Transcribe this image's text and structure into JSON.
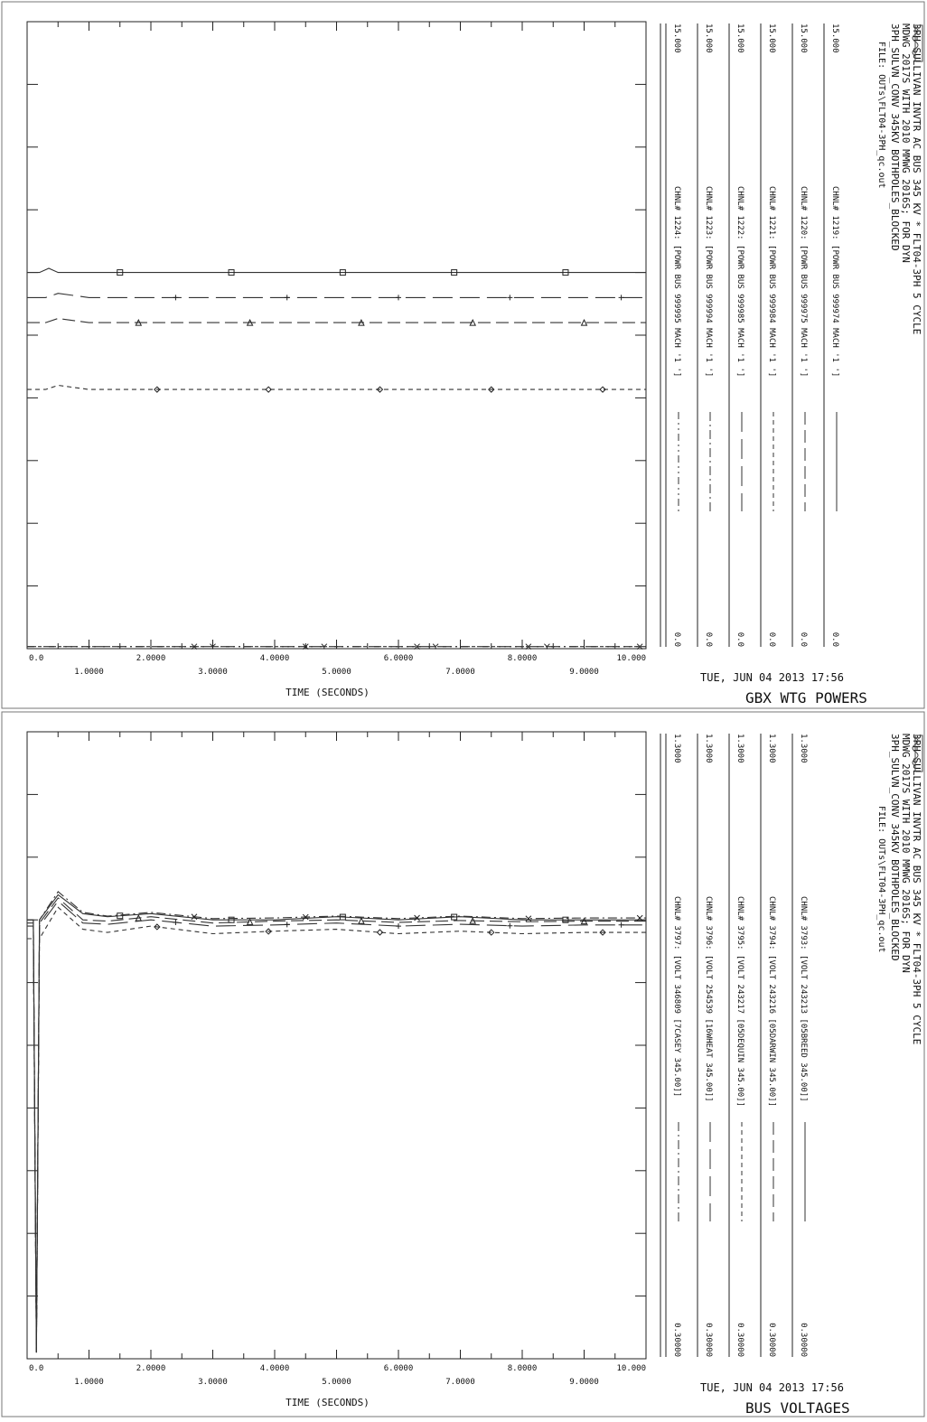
{
  "chart_data": [
    {
      "type": "line",
      "subtitle": "GBX WTG POWERS",
      "date_stamp": "TUE, JUN 04 2013  17:56",
      "header": {
        "line1": "3PH SULLIVAN INVTR AC BUS 345 KV * FLT04-3PH 5 CYCLE",
        "line2": "MDWG 2017S WITH 2010 MMWG 2016S; FOR DYN",
        "line3": "3PH_SULVN_CONV 345KV BOTHPOLES_BLOCKED",
        "file": "FILE: OUTs\\FLT04-3PH_qc.out"
      },
      "xlabel": "TIME (SECONDS)",
      "xlim": [
        0,
        10
      ],
      "x_ticks": [
        "0.0",
        "1.0000",
        "2.0000",
        "3.0000",
        "4.0000",
        "5.0000",
        "6.0000",
        "7.0000",
        "8.0000",
        "9.0000",
        "10.000"
      ],
      "series": [
        {
          "name": "CHNL# 1219: [POWR BUS 999974 MACH '1 ']",
          "max_label": "15.000",
          "min_label": "0.0",
          "min": 0.0,
          "max": 15.0,
          "marker": "square",
          "dash": "solid",
          "x": [
            0,
            0.2,
            0.35,
            0.5,
            1.0,
            2.0,
            4.0,
            6.0,
            8.0,
            10.0
          ],
          "y": [
            9.0,
            9.0,
            9.1,
            9.0,
            9.0,
            9.0,
            9.0,
            9.0,
            9.0,
            9.0
          ]
        },
        {
          "name": "CHNL# 1220: [POWR BUS 999975 MACH '1 ']",
          "max_label": "15.000",
          "min_label": "0.0",
          "min": 0.0,
          "max": 15.0,
          "marker": "triangle",
          "dash": "long",
          "x": [
            0,
            0.3,
            0.5,
            1.0,
            2.0,
            4.0,
            6.0,
            8.0,
            10.0
          ],
          "y": [
            7.8,
            7.8,
            7.9,
            7.8,
            7.8,
            7.8,
            7.8,
            7.8,
            7.8
          ]
        },
        {
          "name": "CHNL# 1221: [POWR BUS 999984 MACH '1 ']",
          "max_label": "15.000",
          "min_label": "0.0",
          "min": 0.0,
          "max": 15.0,
          "marker": "diamond",
          "dash": "short",
          "x": [
            0,
            0.3,
            0.5,
            1.0,
            2.0,
            4.0,
            6.0,
            8.0,
            10.0
          ],
          "y": [
            6.2,
            6.2,
            6.3,
            6.2,
            6.2,
            6.2,
            6.2,
            6.2,
            6.2
          ]
        },
        {
          "name": "CHNL# 1222: [POWR BUS 999985 MACH '1 ']",
          "max_label": "15.000",
          "min_label": "0.0",
          "min": 0.0,
          "max": 15.0,
          "marker": "plus",
          "dash": "longdash",
          "x": [
            0,
            0.3,
            0.5,
            1.0,
            2.0,
            4.0,
            6.0,
            8.0,
            10.0
          ],
          "y": [
            8.4,
            8.4,
            8.5,
            8.4,
            8.4,
            8.4,
            8.4,
            8.4,
            8.4
          ]
        },
        {
          "name": "CHNL# 1223: [POWR BUS 999994 MACH '1 ']",
          "max_label": "15.000",
          "min_label": "0.0",
          "min": 0.0,
          "max": 15.0,
          "marker": "x",
          "dash": "dashdot",
          "x": [
            0,
            10.0
          ],
          "y": [
            0.05,
            0.05
          ]
        },
        {
          "name": "CHNL# 1224: [POWR BUS 999995 MACH '1 ']",
          "max_label": "15.000",
          "min_label": "0.0",
          "min": 0.0,
          "max": 15.0,
          "marker": "y",
          "dash": "dashdot2",
          "x": [
            0,
            10.0
          ],
          "y": [
            0.05,
            0.05
          ]
        }
      ]
    },
    {
      "type": "line",
      "subtitle": "BUS VOLTAGES",
      "date_stamp": "TUE, JUN 04 2013  17:56",
      "header": {
        "line1": "3PH SULLIVAN INVTR AC BUS 345 KV * FLT04-3PH 5 CYCLE",
        "line2": "MDWG 2017S WITH 2010 MMWG 2016S; FOR DYN",
        "line3": "3PH_SULVN_CONV 345KV BOTHPOLES_BLOCKED",
        "file": "FILE: OUTs\\FLT04-3PH_qc.out"
      },
      "xlabel": "TIME (SECONDS)",
      "xlim": [
        0,
        10
      ],
      "x_ticks": [
        "0.0",
        "1.0000",
        "2.0000",
        "3.0000",
        "4.0000",
        "5.0000",
        "6.0000",
        "7.0000",
        "8.0000",
        "9.0000",
        "10.000"
      ],
      "series": [
        {
          "name": "CHNL# 3793: [VOLT 243213 [05BREED      345.00]]",
          "max_label": "1.3000",
          "min_label": "0.30000",
          "min": 0.3,
          "max": 1.3,
          "marker": "square",
          "dash": "solid",
          "x": [
            0,
            0.1,
            0.15,
            0.2,
            0.5,
            0.9,
            1.3,
            2.0,
            3.0,
            4.0,
            5.0,
            6.0,
            7.0,
            8.0,
            9.0,
            10.0
          ],
          "y": [
            1.0,
            1.0,
            0.31,
            1.0,
            1.04,
            1.01,
            1.005,
            1.01,
            1.0,
            1.0,
            1.005,
            1.0,
            1.005,
            1.0,
            1.0,
            1.0
          ]
        },
        {
          "name": "CHNL# 3794: [VOLT 243216 [05DARWIN     345.00]]",
          "max_label": "1.3000",
          "min_label": "0.30000",
          "min": 0.3,
          "max": 1.3,
          "marker": "triangle",
          "dash": "long",
          "x": [
            0,
            0.1,
            0.15,
            0.2,
            0.5,
            0.9,
            1.3,
            2.0,
            3.0,
            4.0,
            5.0,
            6.0,
            7.0,
            8.0,
            9.0,
            10.0
          ],
          "y": [
            0.995,
            0.995,
            0.31,
            0.995,
            1.035,
            1.0,
            0.998,
            1.005,
            0.995,
            0.998,
            1.0,
            0.996,
            0.999,
            0.997,
            0.998,
            0.998
          ]
        },
        {
          "name": "CHNL# 3795: [VOLT 243217 [05DEQUIN     345.00]]",
          "max_label": "1.3000",
          "min_label": "0.30000",
          "min": 0.3,
          "max": 1.3,
          "marker": "diamond",
          "dash": "short",
          "x": [
            0,
            0.1,
            0.15,
            0.2,
            0.5,
            0.9,
            1.3,
            2.0,
            3.0,
            4.0,
            5.0,
            6.0,
            7.0,
            8.0,
            9.0,
            10.0
          ],
          "y": [
            0.97,
            0.97,
            0.31,
            0.97,
            1.02,
            0.985,
            0.98,
            0.99,
            0.978,
            0.982,
            0.985,
            0.978,
            0.982,
            0.978,
            0.98,
            0.98
          ]
        },
        {
          "name": "CHNL# 3796: [VOLT 254539 [16WHEAT      345.00]]",
          "max_label": "1.3000",
          "min_label": "0.30000",
          "min": 0.3,
          "max": 1.3,
          "marker": "plus",
          "dash": "longdash",
          "x": [
            0,
            0.1,
            0.15,
            0.2,
            0.5,
            0.9,
            1.3,
            2.0,
            3.0,
            4.0,
            5.0,
            6.0,
            7.0,
            8.0,
            9.0,
            10.0
          ],
          "y": [
            0.99,
            0.99,
            0.31,
            0.99,
            1.03,
            0.995,
            0.993,
            1.0,
            0.99,
            0.992,
            0.995,
            0.99,
            0.993,
            0.99,
            0.992,
            0.992
          ]
        },
        {
          "name": "CHNL# 3797: [VOLT 346809 [7CASEY       345.00]]",
          "max_label": "1.3000",
          "min_label": "0.30000",
          "min": 0.3,
          "max": 1.3,
          "marker": "x",
          "dash": "dashdot",
          "x": [
            0,
            0.1,
            0.15,
            0.2,
            0.5,
            0.9,
            1.3,
            2.0,
            3.0,
            4.0,
            5.0,
            6.0,
            7.0,
            8.0,
            9.0,
            10.0
          ],
          "y": [
            1.0,
            1.0,
            0.31,
            1.0,
            1.045,
            1.012,
            1.006,
            1.012,
            1.002,
            1.003,
            1.006,
            1.002,
            1.006,
            1.002,
            1.003,
            1.003
          ]
        }
      ]
    }
  ]
}
